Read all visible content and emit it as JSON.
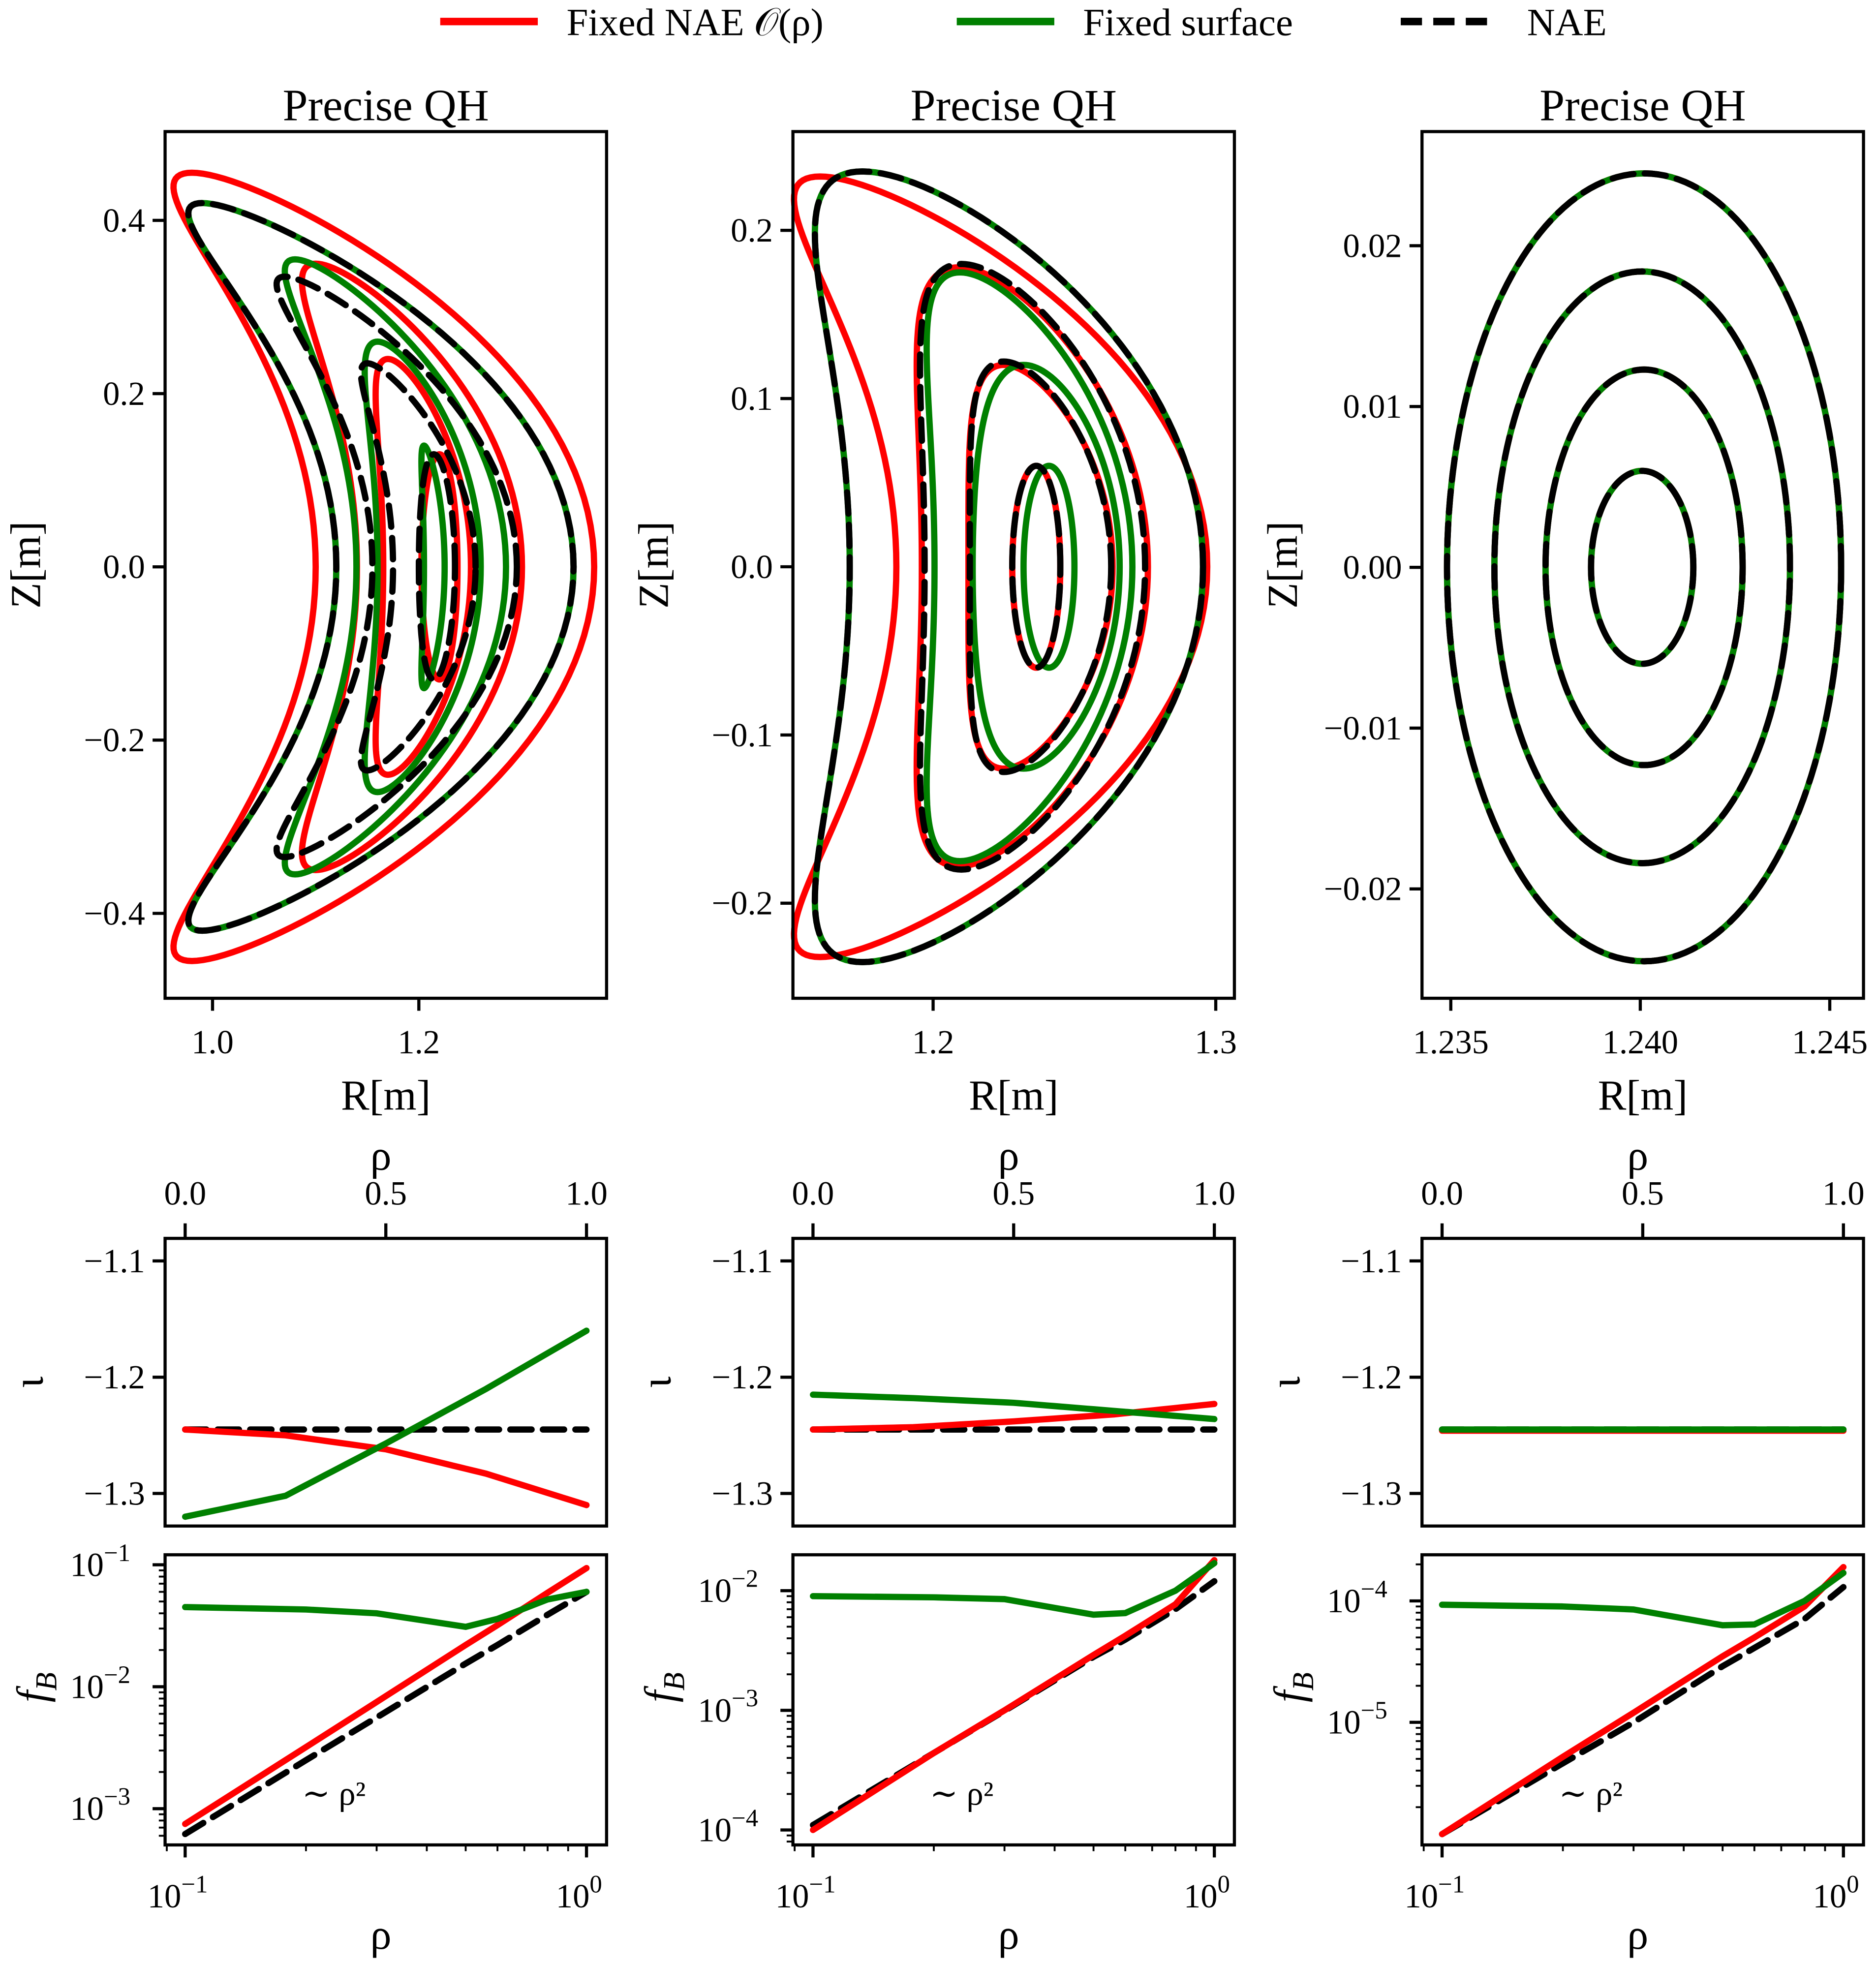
{
  "legend": [
    {
      "label": "Fixed NAE 𝒪(ρ)",
      "color": "#ff0000",
      "style": "solid"
    },
    {
      "label": "Fixed surface",
      "color": "#008000",
      "style": "solid"
    },
    {
      "label": "NAE",
      "color": "#000000",
      "style": "dashed"
    }
  ],
  "chart_data": [
    {
      "type": "line",
      "title": "Precise QH",
      "xlabel": "R[m]",
      "ylabel": "Z[m]",
      "xlim": [
        0.954,
        1.382
      ],
      "ylim": [
        -0.498,
        0.5025
      ],
      "xticks": [
        {
          "v": 1.0,
          "label": "1.0"
        },
        {
          "v": 1.2,
          "label": "1.2"
        }
      ],
      "yticks": [
        {
          "v": 0.4,
          "label": "0.4"
        },
        {
          "v": 0.2,
          "label": "0.2"
        },
        {
          "v": 0.0,
          "label": "0.0"
        },
        {
          "v": -0.2,
          "label": "−0.2"
        },
        {
          "v": -0.4,
          "label": "−0.4"
        }
      ],
      "contour_form": "R = R0 + a cos(t) + c cos(2t), Z = b sin(t); each contour [R0, a, c, b]",
      "series": [
        {
          "name": "Fixed NAE 𝒪(ρ)",
          "contours": [
            [
              1.1075,
              0.135,
              0.1275,
              0.455
            ],
            [
              1.16,
              0.08,
              0.06,
              0.35
            ],
            [
              1.189,
              0.0425,
              0.019,
              0.24
            ],
            [
              1.22,
              0.0175,
              0.0,
              0.13
            ]
          ]
        },
        {
          "name": "Fixed surface",
          "contours": [
            [
              1.1125,
              0.115,
              0.1225,
              0.42
            ],
            [
              1.146,
              0.0725,
              0.066,
              0.355
            ],
            [
              1.185,
              0.05,
              0.025,
              0.26
            ],
            [
              1.21,
              0.01,
              0.005,
              0.14
            ]
          ]
        },
        {
          "name": "NAE",
          "contours": [
            [
              1.1125,
              0.115,
              0.1225,
              0.42
            ],
            [
              1.1475,
              0.07,
              0.0775,
              0.335
            ],
            [
              1.1825,
              0.04,
              0.0325,
              0.235
            ],
            [
              1.216,
              0.0175,
              0.0015,
              0.13
            ]
          ]
        }
      ]
    },
    {
      "type": "line",
      "title": "Precise QH",
      "xlabel": "R[m]",
      "ylabel": "Z[m]",
      "xlim": [
        1.1504,
        1.3066
      ],
      "ylim": [
        -0.2565,
        0.2587
      ],
      "xticks": [
        {
          "v": 1.2,
          "label": "1.2"
        },
        {
          "v": 1.3,
          "label": "1.3"
        }
      ],
      "yticks": [
        {
          "v": 0.2,
          "label": "0.2"
        },
        {
          "v": 0.1,
          "label": "0.1"
        },
        {
          "v": 0.0,
          "label": "0.0"
        },
        {
          "v": -0.1,
          "label": "−0.1"
        },
        {
          "v": -0.2,
          "label": "−0.2"
        }
      ],
      "contour_form": "R = R0 + a cos(t) + c cos(2t), Z = b sin(t); each contour [R0, a, c, b]",
      "series": [
        {
          "name": "Fixed NAE 𝒪(ρ)",
          "contours": [
            [
              1.201,
              0.055,
              0.041,
              0.232
            ],
            [
              1.2225,
              0.04,
              0.0135,
              0.178
            ],
            [
              1.2315,
              0.0255,
              0.0065,
              0.12
            ],
            [
              1.2365,
              0.0085,
              0.0,
              0.06
            ]
          ]
        },
        {
          "name": "Fixed surface",
          "contours": [
            [
              1.204,
              0.0625,
              0.029,
              0.235
            ],
            [
              1.2225,
              0.035,
              0.013,
              0.175
            ],
            [
              1.236,
              0.026,
              0.004,
              0.12
            ],
            [
              1.241,
              0.009,
              0.0,
              0.06
            ]
          ]
        },
        {
          "name": "NAE",
          "contours": [
            [
              1.204,
              0.0625,
              0.029,
              0.235
            ],
            [
              1.223,
              0.039,
              0.013,
              0.18
            ],
            [
              1.2315,
              0.025,
              0.0065,
              0.122
            ],
            [
              1.2365,
              0.0085,
              0.0,
              0.06
            ]
          ]
        }
      ]
    },
    {
      "type": "line",
      "title": "Precise QH",
      "xlabel": "R[m]",
      "ylabel": "Z[m]",
      "xlim": [
        1.23424,
        1.24589
      ],
      "ylim": [
        -0.0268,
        0.0271
      ],
      "xticks": [
        {
          "v": 1.235,
          "label": "1.235"
        },
        {
          "v": 1.24,
          "label": "1.240"
        },
        {
          "v": 1.245,
          "label": "1.245"
        }
      ],
      "yticks": [
        {
          "v": 0.02,
          "label": "0.02"
        },
        {
          "v": 0.01,
          "label": "0.01"
        },
        {
          "v": 0.0,
          "label": "0.00"
        },
        {
          "v": -0.01,
          "label": "−0.01"
        },
        {
          "v": -0.02,
          "label": "−0.02"
        }
      ],
      "contour_form": "R = R0 + a cos(t) + c cos(2t), Z = b sin(t); each contour [R0, a, c, b]",
      "series": [
        {
          "name": "Fixed NAE 𝒪(ρ)",
          "contours": [
            [
              1.2401,
              0.0052,
              0,
              0.0245
            ],
            [
              1.24005,
              0.0039,
              0,
              0.0184
            ],
            [
              1.2401,
              0.0026,
              0,
              0.0123
            ],
            [
              1.24005,
              0.00135,
              0,
              0.006
            ]
          ]
        },
        {
          "name": "Fixed surface",
          "contours": [
            [
              1.2401,
              0.0052,
              0,
              0.0245
            ],
            [
              1.24005,
              0.0039,
              0,
              0.0184
            ],
            [
              1.2401,
              0.0026,
              0,
              0.0123
            ],
            [
              1.24005,
              0.00135,
              0,
              0.006
            ]
          ]
        },
        {
          "name": "NAE",
          "contours": [
            [
              1.2401,
              0.0052,
              0,
              0.0245
            ],
            [
              1.24005,
              0.0039,
              0,
              0.0184
            ],
            [
              1.2401,
              0.0026,
              0,
              0.0123
            ],
            [
              1.24005,
              0.00135,
              0,
              0.006
            ]
          ]
        }
      ]
    },
    {
      "type": "line",
      "xlabel_top": "ρ",
      "ylabel": "ι",
      "xlim": [
        -0.05,
        1.05
      ],
      "ylim": [
        -1.328,
        -1.0806
      ],
      "xticks": [
        {
          "v": 0.0,
          "label": "0.0"
        },
        {
          "v": 0.5,
          "label": "0.5"
        },
        {
          "v": 1.0,
          "label": "1.0"
        }
      ],
      "yticks": [
        {
          "v": -1.1,
          "label": "−1.1"
        },
        {
          "v": -1.2,
          "label": "−1.2"
        },
        {
          "v": -1.3,
          "label": "−1.3"
        }
      ],
      "x": [
        0,
        0.25,
        0.5,
        0.75,
        1.0
      ],
      "series": [
        {
          "name": "Fixed NAE 𝒪(ρ)",
          "values": [
            -1.245,
            -1.25,
            -1.262,
            -1.283,
            -1.31
          ]
        },
        {
          "name": "Fixed surface",
          "values": [
            -1.32,
            -1.302,
            -1.257,
            -1.21,
            -1.16
          ]
        },
        {
          "name": "NAE",
          "values": [
            -1.245,
            -1.245,
            -1.245,
            -1.245,
            -1.245
          ]
        }
      ]
    },
    {
      "type": "line",
      "xlabel_top": "ρ",
      "ylabel": "ι",
      "xlim": [
        -0.05,
        1.05
      ],
      "ylim": [
        -1.328,
        -1.0806
      ],
      "xticks": [
        {
          "v": 0.0,
          "label": "0.0"
        },
        {
          "v": 0.5,
          "label": "0.5"
        },
        {
          "v": 1.0,
          "label": "1.0"
        }
      ],
      "yticks": [
        {
          "v": -1.1,
          "label": "−1.1"
        },
        {
          "v": -1.2,
          "label": "−1.2"
        },
        {
          "v": -1.3,
          "label": "−1.3"
        }
      ],
      "x": [
        0,
        0.25,
        0.5,
        0.75,
        1.0
      ],
      "series": [
        {
          "name": "Fixed NAE 𝒪(ρ)",
          "values": [
            -1.245,
            -1.243,
            -1.238,
            -1.232,
            -1.223
          ]
        },
        {
          "name": "Fixed surface",
          "values": [
            -1.215,
            -1.218,
            -1.222,
            -1.229,
            -1.236
          ]
        },
        {
          "name": "NAE",
          "values": [
            -1.245,
            -1.245,
            -1.245,
            -1.245,
            -1.245
          ]
        }
      ]
    },
    {
      "type": "line",
      "xlabel_top": "ρ",
      "ylabel": "ι",
      "xlim": [
        -0.05,
        1.05
      ],
      "ylim": [
        -1.328,
        -1.0806
      ],
      "xticks": [
        {
          "v": 0.0,
          "label": "0.0"
        },
        {
          "v": 0.5,
          "label": "0.5"
        },
        {
          "v": 1.0,
          "label": "1.0"
        }
      ],
      "yticks": [
        {
          "v": -1.1,
          "label": "−1.1"
        },
        {
          "v": -1.2,
          "label": "−1.2"
        },
        {
          "v": -1.3,
          "label": "−1.3"
        }
      ],
      "x": [
        0,
        0.25,
        0.5,
        0.75,
        1.0
      ],
      "series": [
        {
          "name": "Fixed NAE 𝒪(ρ)",
          "values": [
            -1.246,
            -1.246,
            -1.246,
            -1.246,
            -1.246
          ]
        },
        {
          "name": "Fixed surface",
          "values": [
            -1.245,
            -1.245,
            -1.245,
            -1.245,
            -1.245
          ]
        },
        {
          "name": "NAE",
          "values": [
            -1.245,
            -1.245,
            -1.245,
            -1.245,
            -1.245
          ]
        }
      ]
    },
    {
      "type": "line",
      "scale": "log-log",
      "xlabel": "ρ",
      "ylabel": "f_B",
      "annotation": "∼ ρ²",
      "xlim_log10": [
        -1.05,
        0.05
      ],
      "ylim_log10": [
        -3.297,
        -0.918
      ],
      "xticks": [
        {
          "v": 0.1,
          "base": "10",
          "exp": "−1"
        },
        {
          "v": 1.0,
          "base": "10",
          "exp": "0"
        }
      ],
      "yticks": [
        {
          "v": 0.1,
          "base": "10",
          "exp": "−1"
        },
        {
          "v": 0.01,
          "base": "10",
          "exp": "−2"
        },
        {
          "v": 0.001,
          "base": "10",
          "exp": "−3"
        }
      ],
      "x": [
        0.1,
        0.2,
        0.3,
        0.5,
        0.6,
        0.8,
        1.0
      ],
      "series": [
        {
          "name": "Fixed NAE 𝒪(ρ)",
          "values": [
            0.00075,
            0.0032,
            0.0075,
            0.022,
            0.032,
            0.059,
            0.094
          ]
        },
        {
          "name": "Fixed surface",
          "values": [
            0.045,
            0.043,
            0.04,
            0.031,
            0.036,
            0.052,
            0.06
          ]
        },
        {
          "name": "NAE",
          "values": [
            0.00062,
            0.0025,
            0.0056,
            0.0155,
            0.022,
            0.039,
            0.06
          ]
        }
      ]
    },
    {
      "type": "line",
      "scale": "log-log",
      "xlabel": "ρ",
      "ylabel": "f_B",
      "annotation": "∼ ρ²",
      "xlim_log10": [
        -1.05,
        0.05
      ],
      "ylim_log10": [
        -4.125,
        -1.7
      ],
      "xticks": [
        {
          "v": 0.1,
          "base": "10",
          "exp": "−1"
        },
        {
          "v": 1.0,
          "base": "10",
          "exp": "0"
        }
      ],
      "yticks": [
        {
          "v": 0.01,
          "base": "10",
          "exp": "−2"
        },
        {
          "v": 0.001,
          "base": "10",
          "exp": "−3"
        },
        {
          "v": 0.0001,
          "base": "10",
          "exp": "−4"
        }
      ],
      "x": [
        0.1,
        0.2,
        0.3,
        0.5,
        0.6,
        0.8,
        1.0
      ],
      "series": [
        {
          "name": "Fixed NAE 𝒪(ρ)",
          "values": [
            0.0001,
            0.00044,
            0.001,
            0.0029,
            0.0042,
            0.0077,
            0.018
          ]
        },
        {
          "name": "Fixed surface",
          "values": [
            0.009,
            0.0088,
            0.0085,
            0.0063,
            0.0065,
            0.01,
            0.017
          ]
        },
        {
          "name": "NAE",
          "values": [
            0.00011,
            0.00044,
            0.00099,
            0.0028,
            0.0039,
            0.007,
            0.012
          ]
        }
      ]
    },
    {
      "type": "line",
      "scale": "log-log",
      "xlabel": "ρ",
      "ylabel": "f_B",
      "annotation": "∼ ρ²",
      "xlim_log10": [
        -1.05,
        0.05
      ],
      "ylim_log10": [
        -6.01,
        -3.62
      ],
      "xticks": [
        {
          "v": 0.1,
          "base": "10",
          "exp": "−1"
        },
        {
          "v": 1.0,
          "base": "10",
          "exp": "0"
        }
      ],
      "yticks": [
        {
          "v": 0.0001,
          "base": "10",
          "exp": "−4"
        },
        {
          "v": 1e-05,
          "base": "10",
          "exp": "−5"
        }
      ],
      "x": [
        0.1,
        0.2,
        0.3,
        0.5,
        0.6,
        0.8,
        1.0
      ],
      "series": [
        {
          "name": "Fixed NAE 𝒪(ρ)",
          "values": [
            1.2e-06,
            5.2e-06,
            1.2e-05,
            3.5e-05,
            5e-05,
            9e-05,
            0.00019
          ]
        },
        {
          "name": "Fixed surface",
          "values": [
            9.3e-05,
            9e-05,
            8.5e-05,
            6.3e-05,
            6.4e-05,
            0.0001,
            0.00017
          ]
        },
        {
          "name": "NAE",
          "values": [
            1.2e-06,
            4.6e-06,
            1e-05,
            2.9e-05,
            4.1e-05,
            7.1e-05,
            0.00013
          ]
        }
      ]
    }
  ]
}
